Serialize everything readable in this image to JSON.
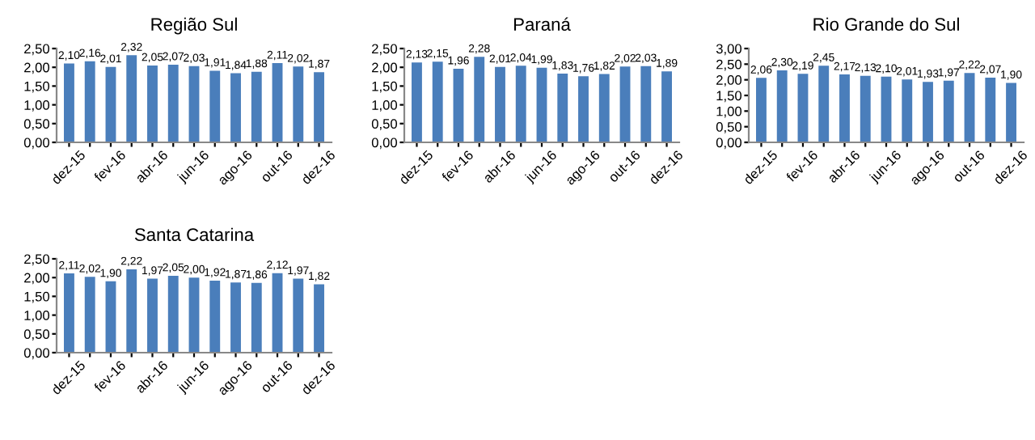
{
  "chart_data": [
    {
      "type": "bar",
      "title": "Região Sul",
      "categories": [
        "dez-15",
        null,
        "fev-16",
        null,
        "abr-16",
        null,
        "jun-16",
        null,
        "ago-16",
        null,
        "out-16",
        null,
        "dez-16"
      ],
      "values": [
        2.1,
        2.16,
        2.01,
        2.32,
        2.05,
        2.07,
        2.03,
        1.91,
        1.84,
        1.88,
        2.11,
        2.02,
        1.87
      ],
      "value_labels": [
        "2,10",
        "2,16",
        "2,01",
        "2,32",
        "2,05",
        "2,07",
        "2,03",
        "1,91",
        "1,84",
        "1,88",
        "2,11",
        "2,02",
        "1,87"
      ],
      "color": "#4a7ebb",
      "ylim": [
        0,
        2.5
      ],
      "yticks": [
        {
          "value": 0,
          "label": "0,00"
        },
        {
          "value": 0.5,
          "label": "0,50"
        },
        {
          "value": 1,
          "label": "1,00"
        },
        {
          "value": 1.5,
          "label": "1,50"
        },
        {
          "value": 2,
          "label": "2,00"
        },
        {
          "value": 2.5,
          "label": "2,50"
        }
      ]
    },
    {
      "type": "bar",
      "title": "Paraná",
      "categories": [
        "dez-15",
        null,
        "fev-16",
        null,
        "abr-16",
        null,
        "jun-16",
        null,
        "ago-16",
        null,
        "out-16",
        null,
        "dez-16"
      ],
      "values": [
        2.13,
        2.15,
        1.96,
        2.28,
        2.01,
        2.04,
        1.99,
        1.83,
        1.76,
        1.82,
        2.02,
        2.03,
        1.89
      ],
      "value_labels": [
        "2,13",
        "2,15",
        "1,96",
        "2,28",
        "2,01",
        "2,04",
        "1,99",
        "1,83",
        "1,76",
        "1,82",
        "2,02",
        "2,03",
        "1,89"
      ],
      "color": "#4a7ebb",
      "ylim": [
        0,
        2.5
      ],
      "yticks": [
        {
          "value": 0,
          "label": "0,00"
        },
        {
          "value": 0.5,
          "label": "0,50"
        },
        {
          "value": 1,
          "label": "1,00"
        },
        {
          "value": 1.5,
          "label": "1,50"
        },
        {
          "value": 2,
          "label": "2,00"
        },
        {
          "value": 2.5,
          "label": "2,50"
        }
      ]
    },
    {
      "type": "bar",
      "title": "Rio Grande do Sul",
      "categories": [
        "dez-15",
        null,
        "fev-16",
        null,
        "abr-16",
        null,
        "jun-16",
        null,
        "ago-16",
        null,
        "out-16",
        null,
        "dez-16"
      ],
      "values": [
        2.06,
        2.3,
        2.19,
        2.45,
        2.17,
        2.13,
        2.1,
        2.01,
        1.93,
        1.97,
        2.22,
        2.07,
        1.9
      ],
      "value_labels": [
        "2,06",
        "2,30",
        "2,19",
        "2,45",
        "2,17",
        "2,13",
        "2,10",
        "2,01",
        "1,93",
        "1,97",
        "2,22",
        "2,07",
        "1,90"
      ],
      "color": "#4a7ebb",
      "ylim": [
        0,
        3
      ],
      "yticks": [
        {
          "value": 0,
          "label": "0,00"
        },
        {
          "value": 0.5,
          "label": "0,50"
        },
        {
          "value": 1,
          "label": "1,00"
        },
        {
          "value": 1.5,
          "label": "1,50"
        },
        {
          "value": 2,
          "label": "2,00"
        },
        {
          "value": 2.5,
          "label": "2,50"
        },
        {
          "value": 3,
          "label": "3,00"
        }
      ]
    },
    {
      "type": "bar",
      "title": "Santa Catarina",
      "categories": [
        "dez-15",
        null,
        "fev-16",
        null,
        "abr-16",
        null,
        "jun-16",
        null,
        "ago-16",
        null,
        "out-16",
        null,
        "dez-16"
      ],
      "values": [
        2.11,
        2.02,
        1.9,
        2.22,
        1.97,
        2.05,
        2.0,
        1.92,
        1.87,
        1.86,
        2.12,
        1.97,
        1.82
      ],
      "value_labels": [
        "2,11",
        "2,02",
        "1,90",
        "2,22",
        "1,97",
        "2,05",
        "2,00",
        "1,92",
        "1,87",
        "1,86",
        "2,12",
        "1,97",
        "1,82"
      ],
      "color": "#4a7ebb",
      "ylim": [
        0,
        2.5
      ],
      "yticks": [
        {
          "value": 0,
          "label": "0,00"
        },
        {
          "value": 0.5,
          "label": "0,50"
        },
        {
          "value": 1,
          "label": "1,00"
        },
        {
          "value": 1.5,
          "label": "1,50"
        },
        {
          "value": 2,
          "label": "2,00"
        },
        {
          "value": 2.5,
          "label": "2,50"
        }
      ]
    }
  ]
}
